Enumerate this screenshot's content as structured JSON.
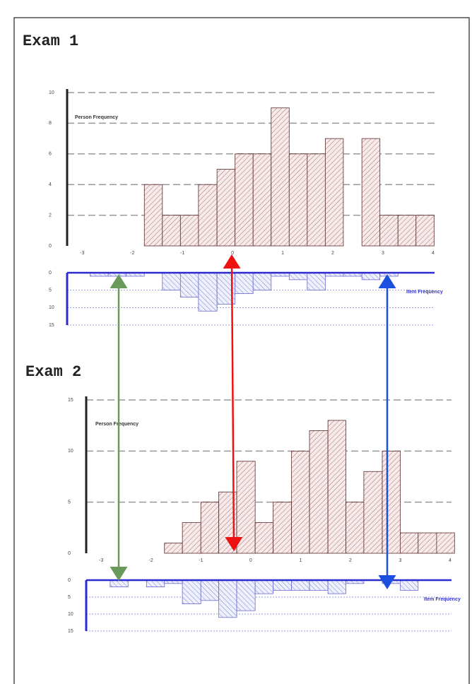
{
  "chart_data": [
    {
      "type": "histogram",
      "title": "Exam 1",
      "annotation": "Person Frequency",
      "bins": [
        -1.76,
        -1.4,
        -1.04,
        -0.68,
        -0.31,
        0.05,
        0.41,
        0.77,
        1.13,
        1.49,
        1.85,
        2.21,
        2.58,
        2.94,
        3.3,
        3.66,
        4.02
      ],
      "values": [
        4,
        2,
        2,
        4,
        5,
        6,
        6,
        9,
        6,
        6,
        7,
        0,
        7,
        2,
        2,
        2
      ],
      "color": "#8b3a3a",
      "xlim": [
        -3.3,
        4.1
      ],
      "xticks": [
        -3,
        -2,
        -1,
        0,
        1,
        2,
        3,
        4
      ],
      "ylim": [
        0,
        10
      ],
      "yticks": [
        0,
        2,
        4,
        6,
        8,
        10
      ],
      "grid": true
    },
    {
      "type": "histogram",
      "annotation": "Item Frequency",
      "y_inverted": true,
      "bins": [
        -2.84,
        -2.48,
        -2.12,
        -1.76,
        -1.4,
        -1.04,
        -0.68,
        -0.31,
        0.05,
        0.41,
        0.77,
        1.13,
        1.49,
        1.85,
        2.21,
        2.58,
        2.94,
        3.3
      ],
      "values": [
        1,
        1,
        1,
        0,
        5,
        7,
        11,
        9,
        6,
        5,
        1,
        2,
        5,
        1,
        1,
        2,
        1
      ],
      "color": "#3333cc",
      "xlim": [
        -3.3,
        4.1
      ],
      "ylim": [
        0,
        15
      ],
      "yticks": [
        0,
        5,
        10,
        15
      ],
      "grid": true
    },
    {
      "type": "histogram",
      "title": "Exam 2",
      "annotation": "Person Frequency",
      "bins": [
        -1.73,
        -1.37,
        -1.0,
        -0.64,
        -0.28,
        0.09,
        0.45,
        0.82,
        1.18,
        1.55,
        1.91,
        2.27,
        2.64,
        3.0,
        3.36,
        3.73,
        4.09
      ],
      "values": [
        1,
        3,
        5,
        6,
        9,
        3,
        5,
        10,
        12,
        13,
        5,
        8,
        10,
        2,
        2,
        2
      ],
      "color": "#8b3a3a",
      "xlim": [
        -3.3,
        4.1
      ],
      "xticks": [
        -3,
        -2,
        -1,
        0,
        1,
        2,
        3,
        4
      ],
      "ylim": [
        0,
        15
      ],
      "yticks": [
        0,
        5,
        10,
        15
      ],
      "grid": true
    },
    {
      "type": "histogram",
      "annotation": "Item Frequency",
      "y_inverted": true,
      "bins": [
        -2.82,
        -2.46,
        -2.09,
        -1.73,
        -1.37,
        -1.0,
        -0.64,
        -0.28,
        0.09,
        0.45,
        0.82,
        1.18,
        1.55,
        1.91,
        2.27,
        2.64,
        3.0,
        3.36
      ],
      "values": [
        2,
        0,
        2,
        1,
        7,
        6,
        11,
        9,
        4,
        3,
        3,
        3,
        4,
        1,
        0,
        1,
        3
      ],
      "color": "#3333cc",
      "xlim": [
        -3.3,
        4.1
      ],
      "ylim": [
        0,
        15
      ],
      "yticks": [
        0,
        5,
        10,
        15
      ],
      "grid": true
    }
  ]
}
